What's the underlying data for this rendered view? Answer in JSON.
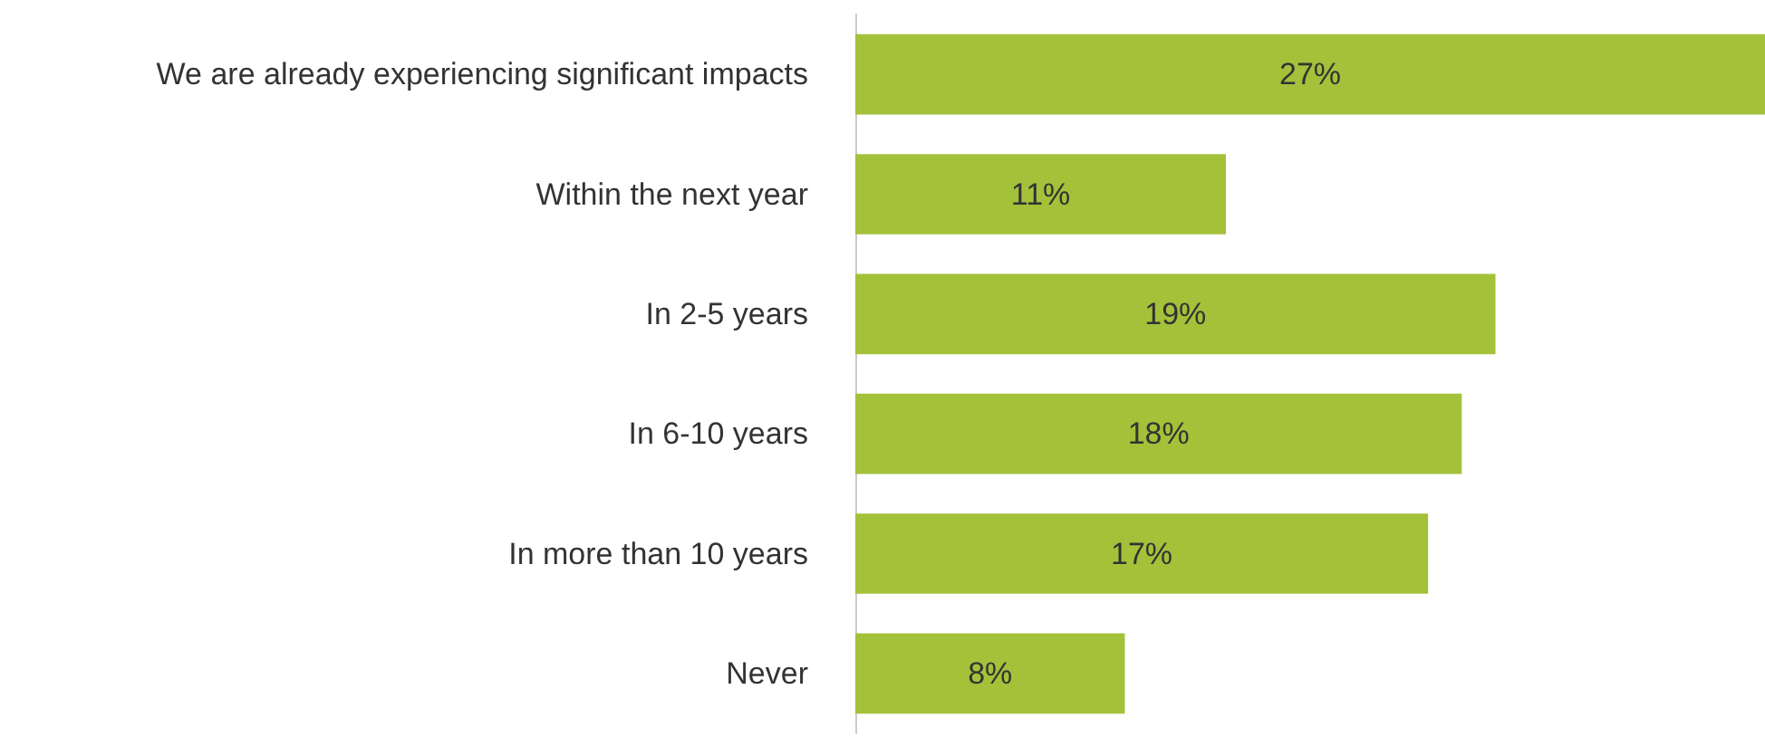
{
  "chart_data": {
    "type": "bar",
    "orientation": "horizontal",
    "categories": [
      "We are already experiencing significant impacts",
      "Within the next year",
      "In 2-5 years",
      "In 6-10 years",
      "In more than 10 years",
      "Never"
    ],
    "values": [
      27,
      11,
      19,
      18,
      17,
      8
    ],
    "value_labels": [
      "27%",
      "11%",
      "19%",
      "18%",
      "17%",
      "8%"
    ],
    "color": "#a4c13a"
  }
}
